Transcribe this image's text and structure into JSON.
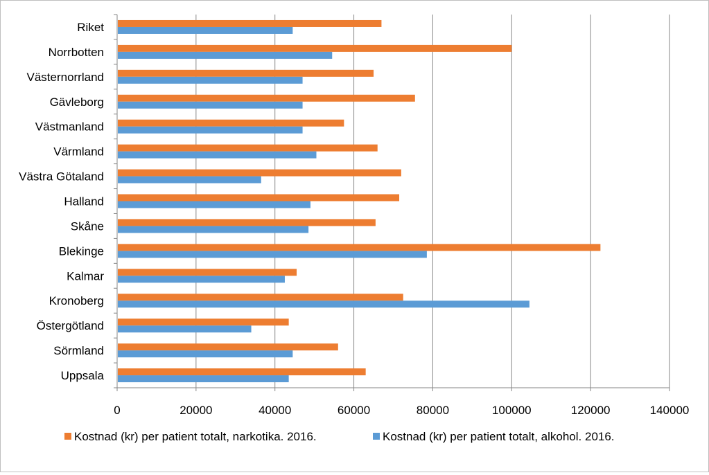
{
  "chart_data": {
    "type": "bar",
    "orientation": "horizontal",
    "title": "",
    "xlabel": "",
    "ylabel": "",
    "xlim": [
      0,
      140000
    ],
    "x_ticks": [
      0,
      20000,
      40000,
      60000,
      80000,
      100000,
      120000,
      140000
    ],
    "grid": "vertical",
    "legend_position": "bottom",
    "categories": [
      "Riket",
      "Norrbotten",
      "Västernorrland",
      "Gävleborg",
      "Västmanland",
      "Värmland",
      "Västra Götaland",
      "Halland",
      "Skåne",
      "Blekinge",
      "Kalmar",
      "Kronoberg",
      "Östergötland",
      "Sörmland",
      "Uppsala"
    ],
    "series": [
      {
        "name": "Kostnad (kr) per patient totalt, narkotika. 2016.",
        "color": "#ED7D31",
        "values": [
          67000,
          100000,
          65000,
          75500,
          57500,
          66000,
          72000,
          71500,
          65500,
          122500,
          45500,
          72500,
          43500,
          56000,
          63000
        ]
      },
      {
        "name": "Kostnad (kr) per patient totalt, alkohol. 2016.",
        "color": "#5B9BD5",
        "values": [
          44500,
          54500,
          47000,
          47000,
          47000,
          50500,
          36500,
          49000,
          48500,
          78500,
          42500,
          104500,
          34000,
          44500,
          43500
        ]
      }
    ]
  }
}
